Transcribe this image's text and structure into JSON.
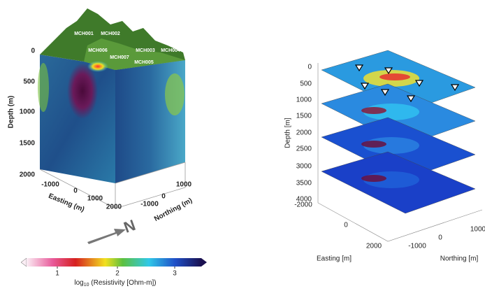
{
  "left_panel": {
    "depth_label": "Depth (m)",
    "depth_ticks": [
      0,
      500,
      1000,
      1500,
      2000
    ],
    "easting_label": "Easting (m)",
    "easting_ticks": [
      -1000,
      0,
      1000,
      2000
    ],
    "northing_label": "Northing (m)",
    "northing_ticks": [
      -1000,
      0,
      1000
    ],
    "wells": [
      "MCH001",
      "MCH002",
      "MCH006",
      "MCH007",
      "MCH003",
      "MCH004",
      "MCH005"
    ],
    "north_label": "N"
  },
  "colorbar": {
    "ticks": [
      1,
      2,
      3
    ],
    "label_prefix": "log",
    "label_subscript": "10",
    "label_suffix": "(Resistivity [Ohm-m])"
  },
  "right_panel": {
    "depth_label": "Depth [m]",
    "depth_ticks": [
      0,
      500,
      1000,
      1500,
      2000,
      2500,
      3000,
      3500,
      4000
    ],
    "easting_label": "Easting [m]",
    "easting_ticks": [
      -2000,
      0,
      2000
    ],
    "northing_label": "Northing [m]",
    "northing_ticks": [
      -1000,
      0,
      1000
    ]
  }
}
